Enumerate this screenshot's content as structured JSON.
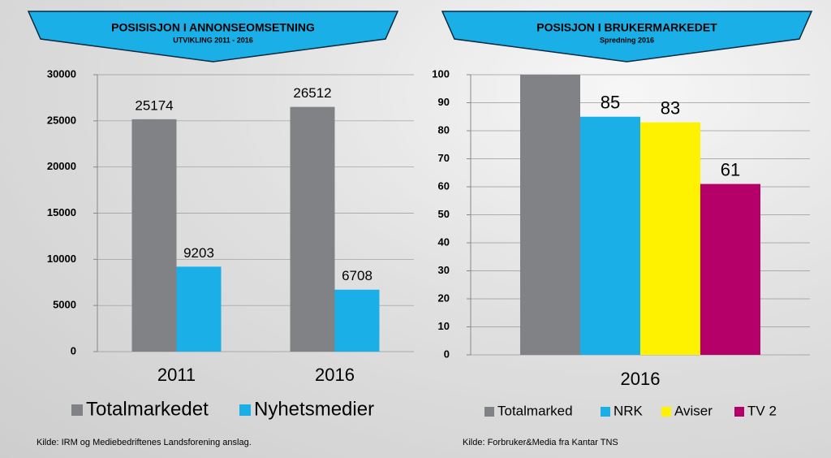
{
  "chart_data": [
    {
      "type": "bar",
      "title": "POSISISJON I  ANNONSEOMSETNING",
      "subtitle": "UTVIKLING 2011 - 2016",
      "categories": [
        "2011",
        "2016"
      ],
      "series": [
        {
          "name": "Totalmarkedet",
          "color": "#808285",
          "values": [
            25174,
            26512
          ]
        },
        {
          "name": "Nyhetsmedier",
          "color": "#1aafe6",
          "values": [
            9203,
            6708
          ]
        }
      ],
      "ylim": [
        0,
        30000
      ],
      "yticks": [
        0,
        5000,
        10000,
        15000,
        20000,
        25000,
        30000
      ],
      "grid": true,
      "source": "Kilde: IRM og Mediebedriftenes Landsforening anslag."
    },
    {
      "type": "bar",
      "title": "POSISJON I BRUKERMARKEDET",
      "subtitle": "Spredning  2016",
      "categories": [
        "2016"
      ],
      "series": [
        {
          "name": "Totalmarked",
          "color": "#808285",
          "values": [
            100
          ],
          "labelled": false
        },
        {
          "name": "NRK",
          "color": "#1aafe6",
          "values": [
            85
          ]
        },
        {
          "name": "Aviser",
          "color": "#fff200",
          "values": [
            83
          ]
        },
        {
          "name": "TV 2",
          "color": "#b5006a",
          "values": [
            61
          ]
        }
      ],
      "ylim": [
        0,
        100
      ],
      "yticks": [
        0,
        10,
        20,
        30,
        40,
        50,
        60,
        70,
        80,
        90,
        100
      ],
      "grid": true,
      "source": "Kilde: Forbruker&Media fra  Kantar TNS"
    }
  ]
}
